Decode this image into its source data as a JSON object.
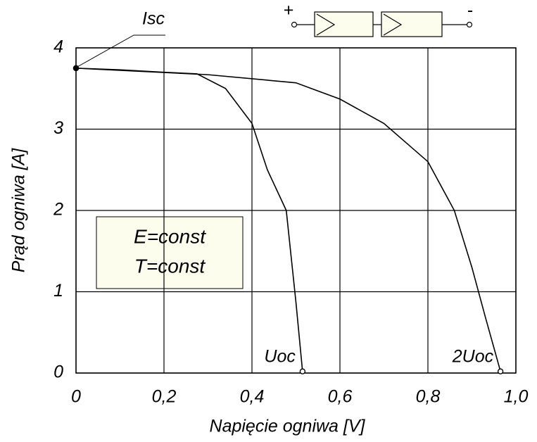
{
  "chart_data": {
    "type": "line",
    "xlabel": "Napięcie ogniwa [V]",
    "ylabel": "Prąd ogniwa [A]",
    "xlim": [
      0,
      1.0
    ],
    "ylim": [
      0,
      4
    ],
    "xticks": [
      0,
      {
        "value": 0.2,
        "label": "0,2"
      },
      {
        "value": 0.4,
        "label": "0,4"
      },
      {
        "value": 0.6,
        "label": "0,6"
      },
      {
        "value": 0.8,
        "label": "0,8"
      },
      {
        "value": 1.0,
        "label": "1,0"
      }
    ],
    "yticks": [
      0,
      1,
      2,
      3,
      4
    ],
    "grid": true,
    "series": [
      {
        "name": "Uoc",
        "color": "#000000",
        "x": [
          0,
          0.1,
          0.2,
          0.275,
          0.34,
          0.4,
          0.435,
          0.478,
          0.5,
          0.515
        ],
        "values": [
          3.75,
          3.73,
          3.7,
          3.68,
          3.5,
          3.07,
          2.5,
          2.0,
          0.87,
          0.02
        ]
      },
      {
        "name": "2Uoc",
        "color": "#000000",
        "x": [
          0,
          0.3,
          0.5,
          0.6,
          0.7,
          0.8,
          0.86,
          0.9,
          0.93,
          0.965
        ],
        "values": [
          3.75,
          3.67,
          3.57,
          3.37,
          3.07,
          2.6,
          2.0,
          1.3,
          0.7,
          0.02
        ]
      }
    ],
    "annotations": {
      "isc": "Isc",
      "box_line1": "E=const",
      "box_line2": "T=const",
      "plus": "+",
      "minus": "-"
    }
  }
}
